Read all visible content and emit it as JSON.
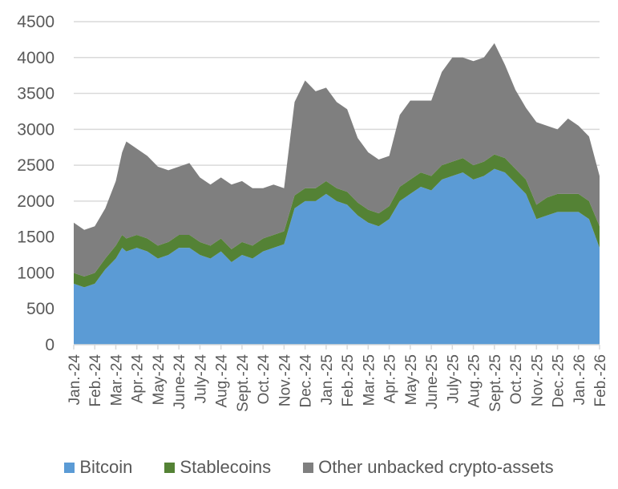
{
  "chart_data": {
    "type": "area",
    "stacked": true,
    "title": "",
    "xlabel": "",
    "ylabel": "",
    "ylim": [
      0,
      4500
    ],
    "yticks": [
      0,
      500,
      1000,
      1500,
      2000,
      2500,
      3000,
      3500,
      4000,
      4500
    ],
    "grid": true,
    "legend_position": "bottom",
    "categories": [
      "Jan.-24",
      "Feb.-24",
      "Mar.-24",
      "Apr.-24",
      "May-24",
      "June-24",
      "July-24",
      "Aug.-24",
      "Sept.-24",
      "Oct.-24",
      "Nov.-24",
      "Dec.-24",
      "Jan.-25",
      "Feb.-25",
      "Mar.-25",
      "Apr.-25",
      "May-25",
      "June-25",
      "July-25",
      "Aug.-25",
      "Sept.-25",
      "Oct.-25",
      "Nov.-25",
      "Dec.-25",
      "Jan.-26",
      "Feb.-26"
    ],
    "x_months": [
      0,
      0.5,
      1,
      1.5,
      2,
      2.3,
      2.5,
      3,
      3.5,
      4,
      4.5,
      5,
      5.5,
      6,
      6.5,
      7,
      7.5,
      8,
      8.5,
      9,
      9.5,
      10,
      10.5,
      11,
      11.5,
      12,
      12.5,
      13,
      13.5,
      14,
      14.5,
      15,
      15.5,
      16,
      16.5,
      17,
      17.5,
      18,
      18.5,
      19,
      19.5,
      20,
      20.5,
      21,
      21.5,
      22,
      22.5,
      23,
      23.5,
      24,
      24.5,
      25
    ],
    "series": [
      {
        "name": "Bitcoin",
        "color": "#5b9bd5",
        "values": [
          850,
          800,
          850,
          1050,
          1200,
          1350,
          1300,
          1350,
          1300,
          1200,
          1250,
          1350,
          1350,
          1250,
          1200,
          1300,
          1150,
          1250,
          1200,
          1300,
          1350,
          1400,
          1900,
          2000,
          2000,
          2100,
          2000,
          1950,
          1800,
          1700,
          1650,
          1750,
          2000,
          2100,
          2200,
          2150,
          2300,
          2350,
          2400,
          2300,
          2350,
          2450,
          2400,
          2250,
          2100,
          1750,
          1800,
          1850,
          1850,
          1850,
          1750,
          1350
        ]
      },
      {
        "name": "Stablecoins",
        "color": "#548235",
        "values": [
          150,
          150,
          150,
          150,
          180,
          180,
          180,
          180,
          180,
          180,
          180,
          180,
          180,
          180,
          180,
          180,
          180,
          180,
          180,
          180,
          180,
          180,
          180,
          180,
          180,
          180,
          180,
          180,
          180,
          180,
          180,
          180,
          200,
          200,
          200,
          200,
          200,
          200,
          200,
          200,
          200,
          200,
          200,
          200,
          200,
          200,
          250,
          250,
          250,
          250,
          250,
          300
        ]
      },
      {
        "name": "Other unbacked crypto-assets",
        "color": "#7f7f7f",
        "values": [
          700,
          650,
          650,
          700,
          900,
          1150,
          1350,
          1200,
          1150,
          1100,
          1000,
          950,
          1000,
          900,
          850,
          850,
          900,
          850,
          800,
          700,
          700,
          600,
          1300,
          1500,
          1350,
          1300,
          1200,
          1150,
          900,
          800,
          750,
          700,
          1000,
          1100,
          1000,
          1050,
          1300,
          1450,
          1400,
          1450,
          1450,
          1550,
          1300,
          1100,
          1000,
          1150,
          1000,
          900,
          1050,
          950,
          900,
          700
        ]
      }
    ]
  },
  "legend": {
    "items": [
      {
        "label": "Bitcoin",
        "color": "#5b9bd5"
      },
      {
        "label": "Stablecoins",
        "color": "#548235"
      },
      {
        "label": "Other unbacked crypto-assets",
        "color": "#7f7f7f"
      }
    ]
  }
}
